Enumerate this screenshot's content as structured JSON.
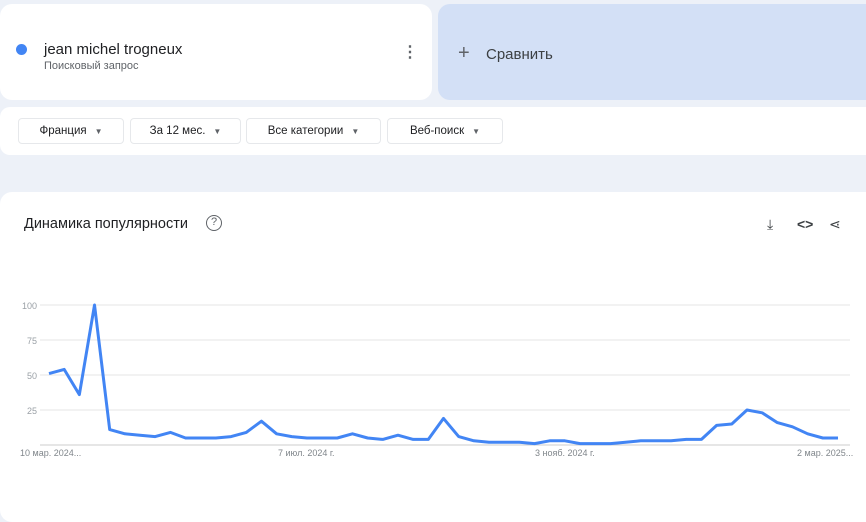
{
  "term": {
    "name": "jean michel trogneux",
    "type": "Поисковый запрос",
    "color": "#4285f4",
    "menu_icon": "more-vert-icon"
  },
  "compare": {
    "label": "Сравнить",
    "icon": "plus-icon"
  },
  "filters": [
    {
      "label": "Франция"
    },
    {
      "label": "За 12 мес."
    },
    {
      "label": "Все категории"
    },
    {
      "label": "Веб-поиск"
    }
  ],
  "chart": {
    "title": "Динамика популярности",
    "help": "?",
    "icons": [
      "download-icon",
      "embed-code-icon",
      "share-icon"
    ]
  },
  "chart_data": {
    "type": "line",
    "title": "Динамика популярности",
    "ylim": [
      0,
      100
    ],
    "yticks": [
      25,
      50,
      75,
      100
    ],
    "xtick_labels": [
      "10 мар. 2024...",
      "7 июл. 2024 г.",
      "3 нояб. 2024 г.",
      "2 мар. 2025..."
    ],
    "grid": true,
    "color": "#4285f4",
    "series": [
      {
        "name": "jean michel trogneux",
        "values": [
          51,
          54,
          36,
          100,
          11,
          8,
          7,
          6,
          9,
          5,
          5,
          5,
          6,
          9,
          17,
          8,
          6,
          5,
          5,
          5,
          8,
          5,
          4,
          7,
          4,
          4,
          19,
          6,
          3,
          2,
          2,
          2,
          1,
          3,
          3,
          1,
          1,
          1,
          2,
          3,
          3,
          3,
          4,
          4,
          14,
          15,
          25,
          23,
          16,
          13,
          8,
          5,
          5
        ]
      }
    ]
  }
}
